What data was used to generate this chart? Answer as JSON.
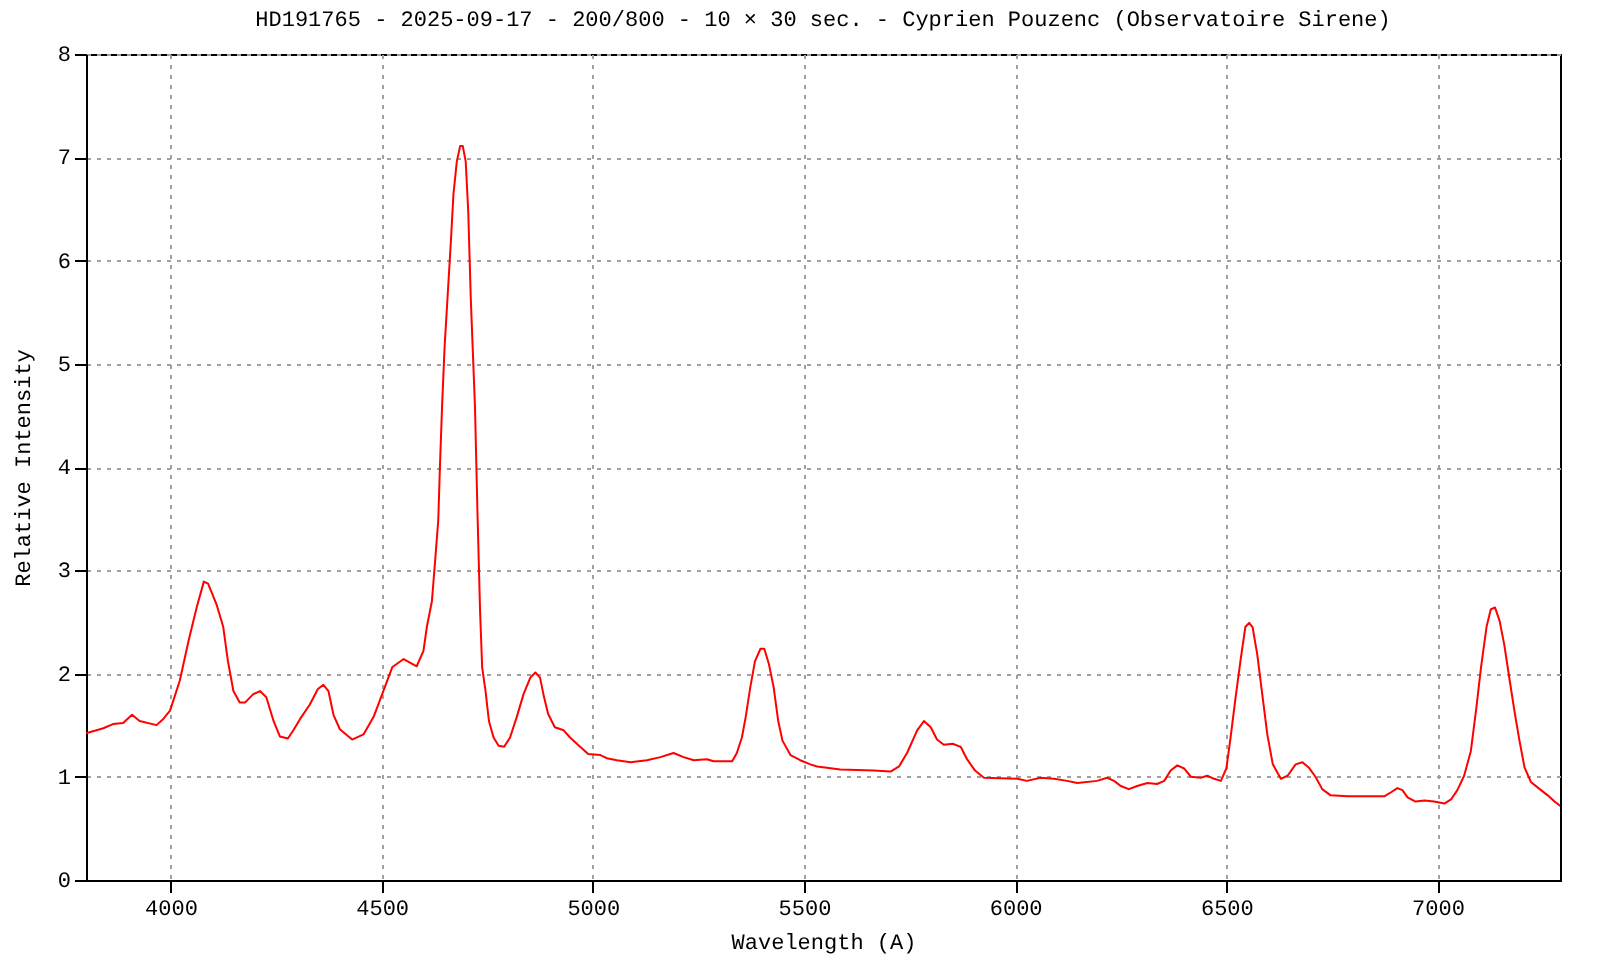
{
  "chart_data": {
    "type": "line",
    "title": "HD191765 - 2025-09-17 - 200/800 - 10 × 30 sec. - Cyprien Pouzenc (Observatoire Sirene)",
    "xlabel": "Wavelength (A)",
    "ylabel": "Relative Intensity",
    "xlim": [
      3800,
      7290
    ],
    "ylim": [
      0,
      8
    ],
    "xticks": [
      4000,
      4500,
      5000,
      5500,
      6000,
      6500,
      7000
    ],
    "yticks": [
      0,
      1,
      2,
      3,
      4,
      5,
      6,
      7,
      8
    ],
    "grid": true,
    "color": "#ff0000",
    "x": [
      3800,
      3841,
      3864,
      3888,
      3909,
      3927,
      3967,
      3983,
      3999,
      4022,
      4043,
      4062,
      4079,
      4089,
      4109,
      4125,
      4136,
      4149,
      4164,
      4177,
      4196,
      4212,
      4227,
      4244,
      4259,
      4278,
      4291,
      4307,
      4330,
      4349,
      4362,
      4374,
      4386,
      4401,
      4430,
      4457,
      4481,
      4504,
      4525,
      4552,
      4583,
      4599,
      4607,
      4619,
      4626,
      4634,
      4638,
      4643,
      4649,
      4657,
      4664,
      4670,
      4678,
      4686,
      4692,
      4699,
      4705,
      4711,
      4721,
      4727,
      4733,
      4738,
      4746,
      4754,
      4765,
      4777,
      4790,
      4804,
      4820,
      4836,
      4852,
      4864,
      4875,
      4883,
      4894,
      4910,
      4931,
      4946,
      4970,
      4989,
      5018,
      5033,
      5057,
      5089,
      5128,
      5160,
      5191,
      5215,
      5239,
      5270,
      5286,
      5330,
      5341,
      5353,
      5362,
      5373,
      5384,
      5397,
      5406,
      5417,
      5428,
      5439,
      5449,
      5468,
      5491,
      5515,
      5531,
      5586,
      5665,
      5705,
      5725,
      5744,
      5768,
      5784,
      5800,
      5815,
      5831,
      5852,
      5871,
      5886,
      5905,
      5926,
      6005,
      6028,
      6060,
      6092,
      6123,
      6147,
      6194,
      6218,
      6234,
      6250,
      6269,
      6289,
      6313,
      6336,
      6353,
      6368,
      6384,
      6400,
      6416,
      6439,
      6455,
      6471,
      6487,
      6500,
      6510,
      6521,
      6534,
      6545,
      6554,
      6562,
      6573,
      6585,
      6597,
      6610,
      6629,
      6645,
      6664,
      6680,
      6695,
      6711,
      6727,
      6747,
      6787,
      6874,
      6890,
      6905,
      6917,
      6929,
      6948,
      6969,
      6992,
      7016,
      7032,
      7047,
      7063,
      7079,
      7092,
      7103,
      7116,
      7126,
      7136,
      7147,
      7158,
      7171,
      7182,
      7194,
      7206,
      7221,
      7242,
      7261,
      7277,
      7290
    ],
    "values": [
      1.42,
      1.47,
      1.51,
      1.52,
      1.6,
      1.54,
      1.5,
      1.56,
      1.64,
      1.93,
      2.32,
      2.64,
      2.89,
      2.87,
      2.67,
      2.45,
      2.12,
      1.83,
      1.72,
      1.72,
      1.8,
      1.83,
      1.77,
      1.54,
      1.39,
      1.37,
      1.45,
      1.56,
      1.7,
      1.85,
      1.89,
      1.83,
      1.6,
      1.46,
      1.36,
      1.41,
      1.58,
      1.83,
      2.06,
      2.14,
      2.07,
      2.22,
      2.45,
      2.7,
      3.06,
      3.48,
      4.0,
      4.58,
      5.16,
      5.71,
      6.19,
      6.64,
      6.96,
      7.11,
      7.11,
      6.96,
      6.48,
      5.64,
      4.58,
      3.54,
      2.61,
      2.06,
      1.83,
      1.54,
      1.38,
      1.3,
      1.29,
      1.38,
      1.58,
      1.8,
      1.96,
      2.01,
      1.96,
      1.8,
      1.61,
      1.48,
      1.45,
      1.38,
      1.29,
      1.22,
      1.21,
      1.18,
      1.16,
      1.14,
      1.16,
      1.19,
      1.23,
      1.19,
      1.16,
      1.17,
      1.15,
      1.15,
      1.23,
      1.38,
      1.58,
      1.87,
      2.12,
      2.24,
      2.24,
      2.09,
      1.87,
      1.54,
      1.35,
      1.21,
      1.16,
      1.12,
      1.1,
      1.07,
      1.06,
      1.05,
      1.1,
      1.23,
      1.45,
      1.54,
      1.48,
      1.36,
      1.31,
      1.32,
      1.29,
      1.17,
      1.06,
      0.99,
      0.98,
      0.96,
      0.99,
      0.98,
      0.96,
      0.94,
      0.96,
      0.99,
      0.96,
      0.91,
      0.88,
      0.91,
      0.94,
      0.93,
      0.96,
      1.06,
      1.11,
      1.08,
      1.0,
      0.99,
      1.01,
      0.98,
      0.96,
      1.08,
      1.38,
      1.74,
      2.14,
      2.45,
      2.49,
      2.45,
      2.19,
      1.8,
      1.41,
      1.12,
      0.98,
      1.01,
      1.12,
      1.14,
      1.09,
      1.0,
      0.88,
      0.82,
      0.81,
      0.81,
      0.85,
      0.89,
      0.87,
      0.8,
      0.76,
      0.77,
      0.76,
      0.74,
      0.78,
      0.87,
      1.01,
      1.25,
      1.67,
      2.06,
      2.45,
      2.62,
      2.64,
      2.51,
      2.28,
      1.93,
      1.64,
      1.35,
      1.09,
      0.95,
      0.88,
      0.82,
      0.76,
      0.72
    ]
  }
}
